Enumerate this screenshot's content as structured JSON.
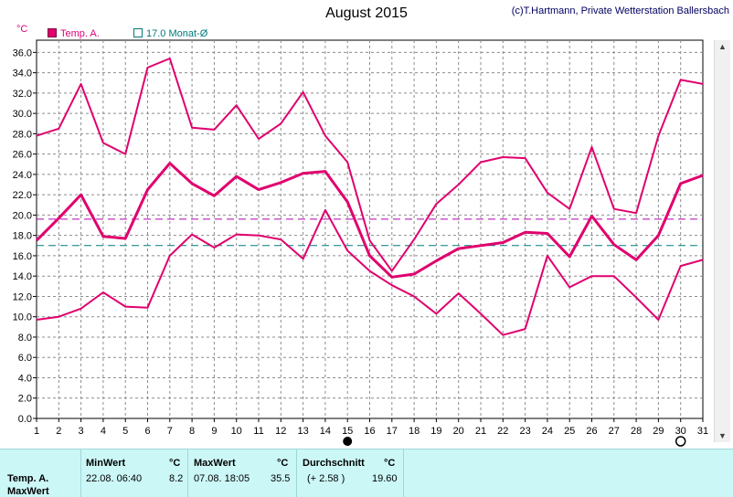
{
  "header": {
    "title": "August 2015",
    "credit": "(c)T.Hartmann, Private Wetterstation Ballersbach",
    "unit": "°C",
    "legend": [
      {
        "label": "Temp. A.",
        "marker": "filled-square",
        "color": "#e0006e"
      },
      {
        "label": "17.0 Monat-Ø",
        "marker": "hollow-square",
        "color": "#007a7a"
      }
    ]
  },
  "chart_data": {
    "type": "line",
    "x": [
      1,
      2,
      3,
      4,
      5,
      6,
      7,
      8,
      9,
      10,
      11,
      12,
      13,
      14,
      15,
      16,
      17,
      18,
      19,
      20,
      21,
      22,
      23,
      24,
      25,
      26,
      27,
      28,
      29,
      30,
      31
    ],
    "xticks": [
      "1",
      "2",
      "3",
      "4",
      "5",
      "6",
      "7",
      "8",
      "9",
      "10",
      "11",
      "12",
      "13",
      "14",
      "15",
      "16",
      "17",
      "18",
      "19",
      "20",
      "21",
      "22",
      "23",
      "24",
      "25",
      "26",
      "27",
      "28",
      "29",
      "30",
      "31"
    ],
    "ylim": [
      0,
      37.2
    ],
    "yticks": [
      "0.0",
      "2.0",
      "4.0",
      "6.0",
      "8.0",
      "10.0",
      "12.0",
      "14.0",
      "16.0",
      "18.0",
      "20.0",
      "22.0",
      "24.0",
      "26.0",
      "28.0",
      "30.0",
      "32.0",
      "34.0",
      "36.0"
    ],
    "grid": true,
    "series": [
      {
        "role": "max",
        "color": "#e0006e",
        "width": 2,
        "values": [
          27.8,
          28.5,
          32.9,
          27.1,
          26.0,
          34.5,
          35.4,
          28.6,
          28.4,
          30.8,
          27.5,
          29.0,
          32.1,
          27.8,
          25.2,
          17.5,
          14.5,
          17.6,
          21.1,
          23.0,
          25.2,
          25.7,
          25.6,
          22.2,
          20.6,
          26.7,
          20.6,
          20.2,
          27.8,
          33.3,
          32.9
        ]
      },
      {
        "role": "mean",
        "color": "#e0006e",
        "width": 3,
        "values": [
          17.5,
          19.7,
          22.0,
          17.9,
          17.7,
          22.5,
          25.1,
          23.1,
          21.9,
          23.8,
          22.5,
          23.2,
          24.1,
          24.3,
          21.3,
          16.0,
          13.9,
          14.2,
          15.5,
          16.7,
          17.0,
          17.3,
          18.3,
          18.2,
          15.9,
          19.9,
          17.1,
          15.6,
          18.0,
          23.1,
          23.9
        ]
      },
      {
        "role": "min",
        "color": "#e0006e",
        "width": 2,
        "values": [
          9.7,
          10.0,
          10.8,
          12.4,
          11.0,
          10.9,
          16.0,
          18.1,
          16.8,
          18.1,
          18.0,
          17.6,
          15.7,
          20.5,
          16.5,
          14.5,
          13.1,
          12.0,
          10.3,
          12.3,
          10.3,
          8.2,
          8.8,
          16.0,
          12.9,
          14.0,
          14.0,
          11.9,
          9.7,
          15.0,
          15.6
        ]
      }
    ],
    "reference_lines": [
      {
        "value": 19.6,
        "color": "#b000b0"
      },
      {
        "value": 17.0,
        "color": "#007a7a"
      }
    ],
    "moon_markers": [
      {
        "day": 15,
        "phase": "new-moon"
      },
      {
        "day": 30,
        "phase": "full-moon"
      }
    ]
  },
  "table": {
    "row_label": "Temp. A.",
    "row_label_2": "MaxWert",
    "min": {
      "header": "MinWert",
      "unit": "°C",
      "datetime": "22.08.  06:40",
      "value": "8.2"
    },
    "max": {
      "header": "MaxWert",
      "unit": "°C",
      "datetime": "07.08.  18:05",
      "value": "35.5"
    },
    "avg": {
      "header": "Durchschnitt",
      "unit": "°C",
      "delta": "(+ 2.58 )",
      "value": "19.60"
    }
  }
}
